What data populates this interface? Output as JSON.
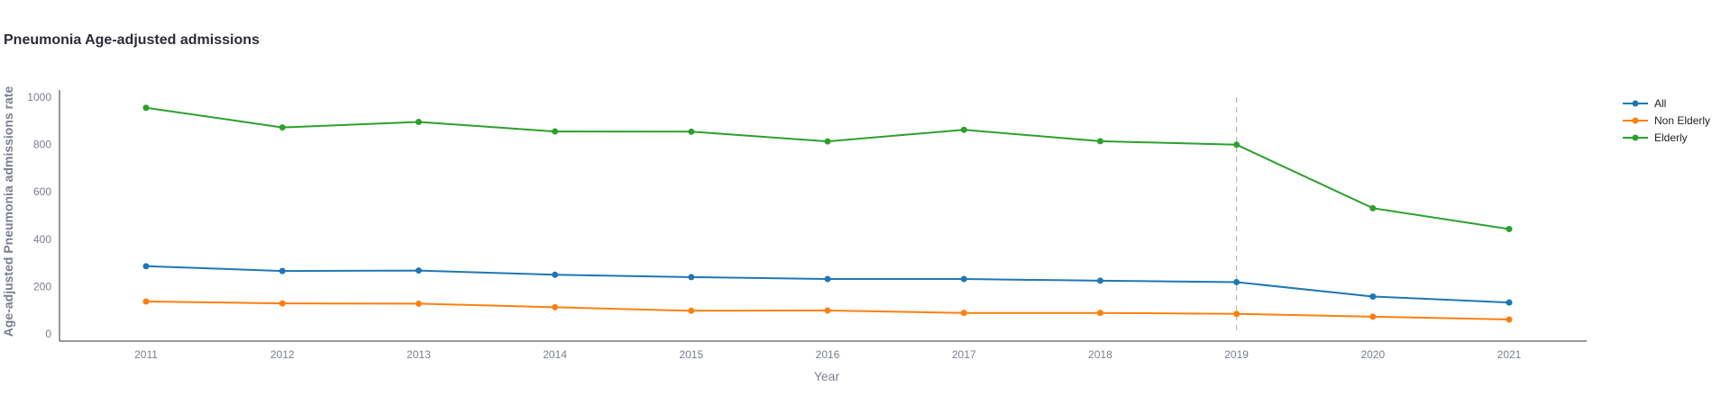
{
  "chart_data": {
    "type": "line",
    "title": "Pneumonia Age-adjusted admissions",
    "xlabel": "Year",
    "ylabel": "Age-adjusted Pneumonia admissions rate",
    "x": [
      "2011",
      "2012",
      "2013",
      "2014",
      "2015",
      "2016",
      "2017",
      "2018",
      "2019",
      "2020",
      "2021"
    ],
    "ylim": [
      -30,
      1030
    ],
    "yticks": [
      0,
      200,
      400,
      600,
      800,
      1000
    ],
    "grid": false,
    "legend": "right",
    "reference_line_x": "2019",
    "series": [
      {
        "name": "All",
        "color": "#1f77b4",
        "values": [
          286,
          266,
          268,
          250,
          240,
          232,
          232,
          225,
          219,
          158,
          133
        ]
      },
      {
        "name": "Non Elderly",
        "color": "#ff7f0e",
        "values": [
          137,
          129,
          128,
          113,
          98,
          99,
          89,
          89,
          85,
          73,
          61
        ]
      },
      {
        "name": "Elderly",
        "color": "#2ca02c",
        "values": [
          955,
          872,
          895,
          855,
          854,
          813,
          862,
          814,
          799,
          531,
          443
        ]
      }
    ]
  }
}
